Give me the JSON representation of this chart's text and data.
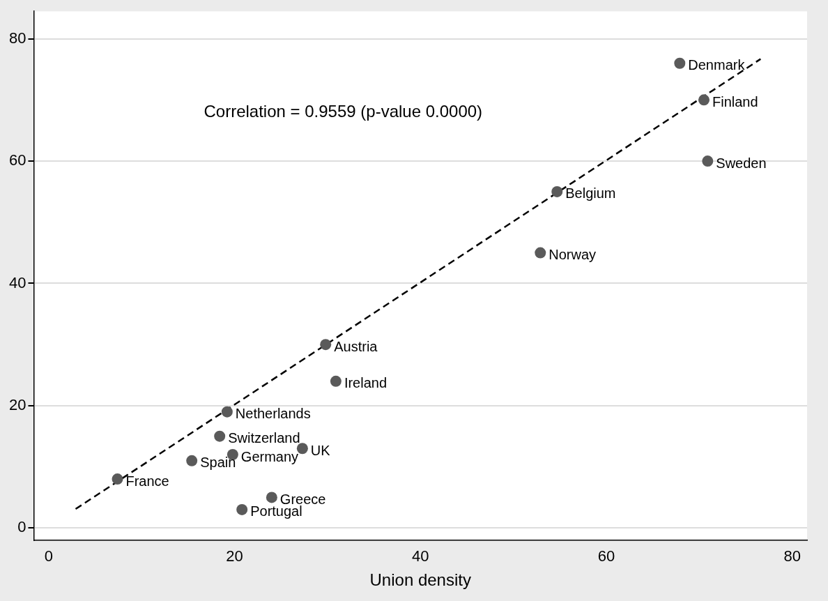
{
  "chart_data": {
    "type": "scatter",
    "xlabel": "Union density",
    "annotations": [
      "Correlation = 0.9559 (p-value 0.0000)"
    ],
    "xlim": [
      -1.6,
      81.6
    ],
    "ylim": [
      -2,
      84.5
    ],
    "xticks": [
      0,
      20,
      40,
      60,
      80
    ],
    "yticks": [
      0,
      20,
      40,
      60,
      80
    ],
    "grid": "y",
    "legend": false,
    "series": [
      {
        "color": "#5a5a5a",
        "marker": "circle",
        "x": [
          67.9,
          70.5,
          70.9,
          54.7,
          52.9,
          29.8,
          30.9,
          19.2,
          18.4,
          27.3,
          19.8,
          15.4,
          7.4,
          24.0,
          20.8
        ],
        "values": [
          76,
          70,
          60,
          55,
          45,
          30,
          24,
          19,
          15,
          13,
          12,
          11,
          8,
          5,
          3
        ],
        "value_labels": [
          "Denmark",
          "Finland",
          "Sweden",
          "Belgium",
          "Norway",
          "Austria",
          "Ireland",
          "Netherlands",
          "Switzerland",
          "UK",
          "Germany",
          "Spain",
          "France",
          "Greece",
          "Portugal"
        ]
      },
      {
        "type": "line",
        "color": "#000000",
        "marker": "none",
        "line_style": "dashed",
        "x": [
          2.9,
          76.6
        ],
        "values": [
          3.1,
          76.7
        ]
      }
    ]
  }
}
